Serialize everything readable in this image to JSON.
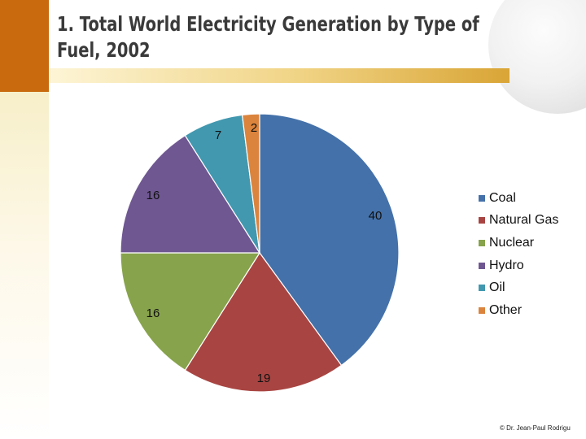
{
  "slide": {
    "title": "1. Total World Electricity Generation by Type of Fuel, 2002",
    "copyright": "© Dr. Jean-Paul Rodrigu"
  },
  "chart_data": {
    "type": "pie",
    "title": "",
    "categories": [
      "Coal",
      "Natural Gas",
      "Nuclear",
      "Hydro",
      "Oil",
      "Other"
    ],
    "values": [
      40,
      19,
      16,
      16,
      7,
      2
    ],
    "data_labels": [
      "40",
      "19",
      "16",
      "16",
      "7",
      "2"
    ],
    "colors": [
      "#4471a9",
      "#a84542",
      "#87a34c",
      "#6f5792",
      "#4198af",
      "#db843d"
    ],
    "legend_position": "right"
  }
}
